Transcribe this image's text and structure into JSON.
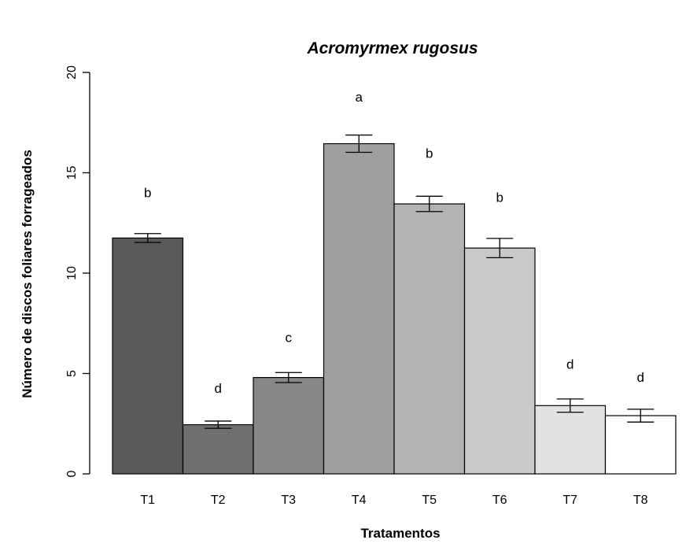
{
  "chart_data": {
    "type": "bar",
    "title": "Acromyrmex rugosus",
    "xlabel": "Tratamentos",
    "ylabel": "Número de discos foliares forrageados",
    "ylim": [
      0,
      20
    ],
    "yticks": [
      "0",
      "5",
      "10",
      "15",
      "20"
    ],
    "categories": [
      "T1",
      "T2",
      "T3",
      "T4",
      "T5",
      "T6",
      "T7",
      "T8"
    ],
    "values": [
      11.75,
      2.45,
      4.8,
      16.45,
      13.45,
      11.25,
      3.4,
      2.9
    ],
    "errors": [
      0.22,
      0.18,
      0.25,
      0.43,
      0.38,
      0.48,
      0.33,
      0.32
    ],
    "significance_letters": [
      "b",
      "d",
      "c",
      "a",
      "b",
      "b",
      "d",
      "d"
    ],
    "colors": [
      "#595959",
      "#6f6f6f",
      "#878787",
      "#9f9f9f",
      "#b3b3b3",
      "#c9c9c9",
      "#e2e2e2",
      "#ffffff"
    ],
    "grid": false,
    "legend": "none"
  }
}
